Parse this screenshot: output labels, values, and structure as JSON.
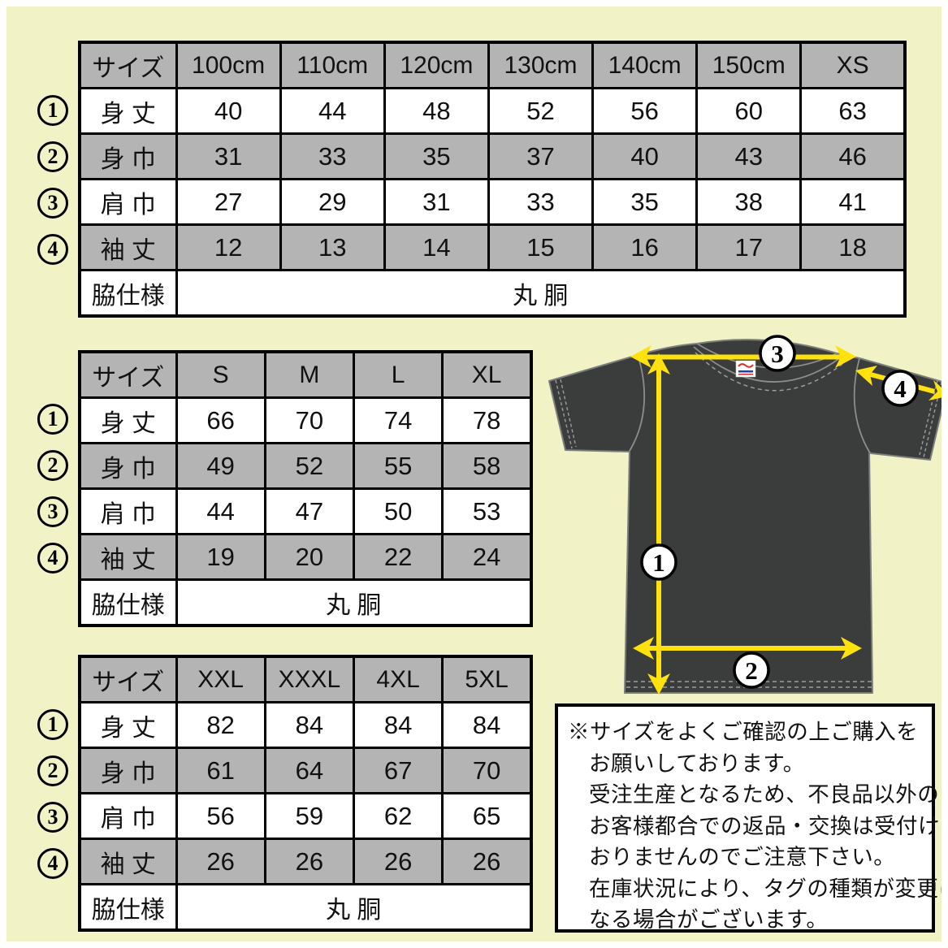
{
  "colors": {
    "background": "#f1f2c6",
    "table_shade": "#b4b4b4",
    "table_bg": "#ffffff",
    "border": "#000000",
    "shirt_body": "#3a3d3b",
    "shirt_seam": "#7a7d7a",
    "arrow_yellow": "#ffe20c",
    "tag_red": "#d93025",
    "tag_blue": "#2a3f9d"
  },
  "markers": [
    "1",
    "2",
    "3",
    "4"
  ],
  "tables": [
    {
      "id": "kids",
      "header": [
        "サイズ",
        "100cm",
        "110cm",
        "120cm",
        "130cm",
        "140cm",
        "150cm",
        "XS"
      ],
      "rows": [
        {
          "label": "身 丈",
          "values": [
            "40",
            "44",
            "48",
            "52",
            "56",
            "60",
            "63"
          ]
        },
        {
          "label": "身 巾",
          "values": [
            "31",
            "33",
            "35",
            "37",
            "40",
            "43",
            "46"
          ]
        },
        {
          "label": "肩 巾",
          "values": [
            "27",
            "29",
            "31",
            "33",
            "35",
            "38",
            "41"
          ]
        },
        {
          "label": "袖 丈",
          "values": [
            "12",
            "13",
            "14",
            "15",
            "16",
            "17",
            "18"
          ]
        }
      ],
      "footer_label": "脇仕様",
      "footer_value": "丸 胴"
    },
    {
      "id": "adult",
      "header": [
        "サイズ",
        "S",
        "M",
        "L",
        "XL"
      ],
      "rows": [
        {
          "label": "身 丈",
          "values": [
            "66",
            "70",
            "74",
            "78"
          ]
        },
        {
          "label": "身 巾",
          "values": [
            "49",
            "52",
            "55",
            "58"
          ]
        },
        {
          "label": "肩 巾",
          "values": [
            "44",
            "47",
            "50",
            "53"
          ]
        },
        {
          "label": "袖 丈",
          "values": [
            "19",
            "20",
            "22",
            "24"
          ]
        }
      ],
      "footer_label": "脇仕様",
      "footer_value": "丸 胴"
    },
    {
      "id": "big",
      "header": [
        "サイズ",
        "XXL",
        "XXXL",
        "4XL",
        "5XL"
      ],
      "rows": [
        {
          "label": "身 丈",
          "values": [
            "82",
            "84",
            "84",
            "84"
          ]
        },
        {
          "label": "身 巾",
          "values": [
            "61",
            "64",
            "67",
            "70"
          ]
        },
        {
          "label": "肩 巾",
          "values": [
            "56",
            "59",
            "62",
            "65"
          ]
        },
        {
          "label": "袖 丈",
          "values": [
            "26",
            "26",
            "26",
            "26"
          ]
        }
      ],
      "footer_label": "脇仕様",
      "footer_value": "丸 胴"
    }
  ],
  "diagram": {
    "labels": [
      "1",
      "2",
      "3",
      "4"
    ]
  },
  "notice": {
    "lines": [
      "※サイズをよくご確認の上ご購入を",
      "お願いしております。",
      "受注生産となるため、不良品以外の",
      "お客様都合での返品・交換は受付けて",
      "おりませんのでご注意下さい。",
      "在庫状況により、タグの種類が変更に",
      "なる場合がございます。"
    ]
  }
}
